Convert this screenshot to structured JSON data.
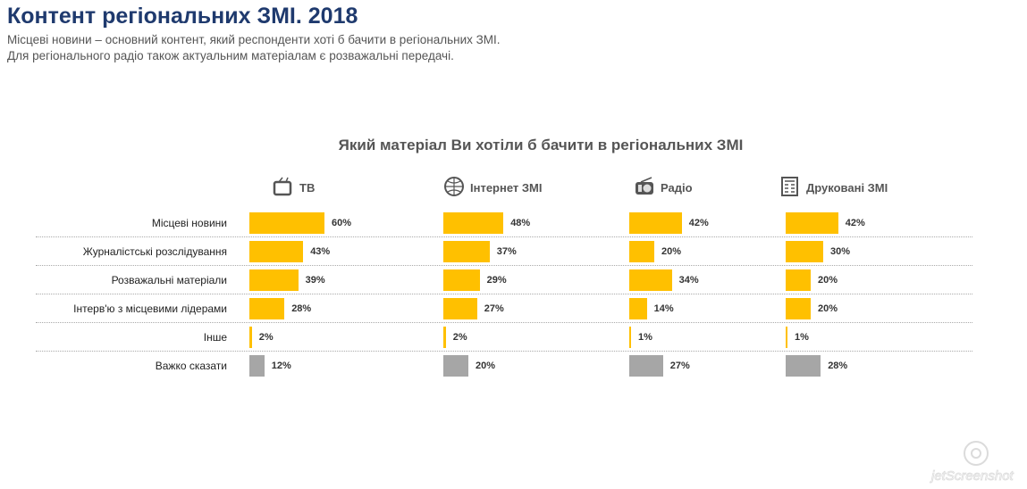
{
  "header": {
    "title": "Контент регіональних ЗМІ. 2018",
    "subtitle_lines": [
      "Місцеві новини – основний контент, який респонденти хоті б бачити в регіональних ЗМІ.",
      "Для регіонального радіо також актуальним матеріалам є розважальні передачі."
    ]
  },
  "chart_data": {
    "type": "bar",
    "orientation": "horizontal",
    "title": "Який матеріал Ви хотіли б бачити в регіональних ЗМІ",
    "categories": [
      "Місцеві новини",
      "Журналістські розслідування",
      "Розважальні матеріали",
      "Інтерв'ю з місцевими лідерами",
      "Інше",
      "Важко сказати"
    ],
    "series": [
      {
        "name": "ТВ",
        "icon": "tv-icon",
        "values": [
          60,
          43,
          39,
          28,
          2,
          12
        ]
      },
      {
        "name": "Інтернет ЗМІ",
        "icon": "globe-www-icon",
        "values": [
          48,
          37,
          29,
          27,
          2,
          20
        ]
      },
      {
        "name": "Радіо",
        "icon": "radio-icon",
        "values": [
          42,
          20,
          34,
          14,
          1,
          27
        ]
      },
      {
        "name": "Друковані ЗМІ",
        "icon": "newspaper-icon",
        "values": [
          42,
          30,
          20,
          20,
          1,
          28
        ]
      }
    ],
    "unit": "%",
    "colors": {
      "main": "#ffc000",
      "hard_to_say": "#a6a6a6"
    }
  },
  "watermark": "jetScreenshot.com"
}
